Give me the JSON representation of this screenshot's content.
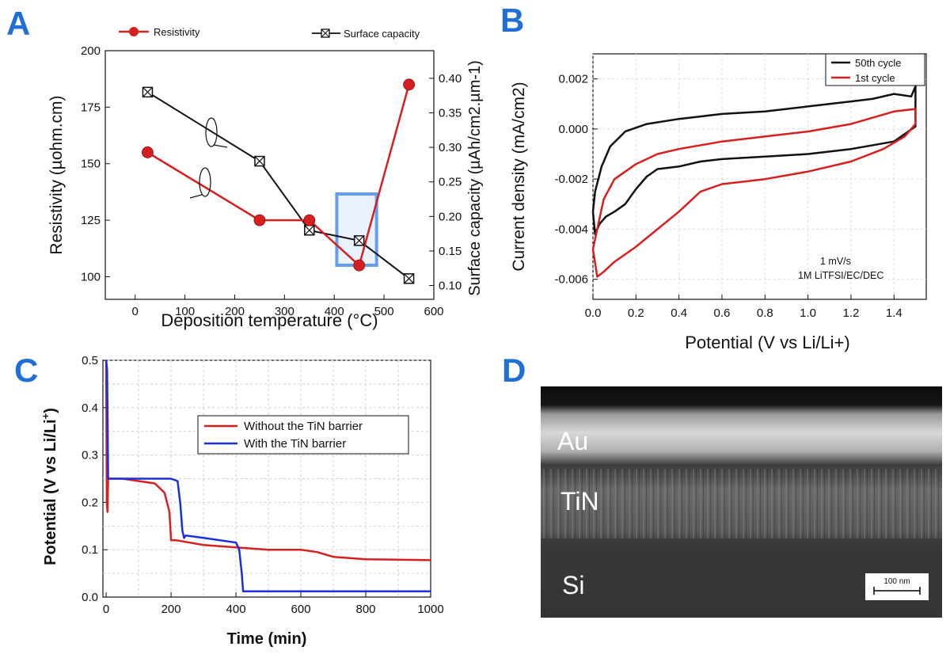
{
  "colors": {
    "red": "#d62020",
    "black": "#111111",
    "blue": "#1a2fe0",
    "letter": "#1f6fd6",
    "highlight": "#4a8ef0"
  },
  "panels": {
    "A": {
      "letter": "A"
    },
    "B": {
      "letter": "B"
    },
    "C": {
      "letter": "C"
    },
    "D": {
      "letter": "D"
    }
  },
  "chart_data": [
    {
      "type": "line",
      "panel": "A",
      "xlabel": "Deposition temperature (°C)",
      "ylabel": "Resistivity (µohm.cm)",
      "ylabel_right": "Surface capacity (µAh/cm2.µm-1)",
      "xlim": [
        -60,
        600
      ],
      "ylim": [
        90,
        200
      ],
      "ylim_right": [
        0.08,
        0.44
      ],
      "x_ticks": [
        0,
        100,
        200,
        300,
        400,
        500,
        600
      ],
      "y_ticks": [
        100,
        125,
        150,
        175,
        200
      ],
      "y_ticks_right": [
        0.1,
        0.15,
        0.2,
        0.25,
        0.3,
        0.35,
        0.4
      ],
      "y_tick_labels_right": [
        "0.10",
        "0.15",
        "0.20",
        "0.25",
        "0.30",
        "0.35",
        "0.40"
      ],
      "legend": [
        "Resistivity",
        "Surface capacity"
      ],
      "legend_position": "top",
      "series": [
        {
          "name": "Resistivity",
          "axis": "left",
          "marker": "sphere",
          "color": "#d62020",
          "x": [
            25,
            250,
            350,
            450,
            550
          ],
          "y": [
            155,
            125,
            125,
            105,
            185
          ]
        },
        {
          "name": "Surface capacity",
          "axis": "right",
          "marker": "boxed-x",
          "color": "#111111",
          "x": [
            25,
            250,
            350,
            450,
            550
          ],
          "y": [
            0.38,
            0.28,
            0.18,
            0.165,
            0.11
          ]
        }
      ],
      "highlight_x_range": [
        405,
        485
      ]
    },
    {
      "type": "line",
      "panel": "B",
      "xlabel": "Potential (V vs Li/Li+)",
      "ylabel": "Current density (mA/cm2)",
      "xlim": [
        0,
        1.55
      ],
      "ylim": [
        -0.0068,
        0.003
      ],
      "x_ticks": [
        0.0,
        0.2,
        0.4,
        0.6,
        0.8,
        1.0,
        1.2,
        1.4
      ],
      "x_tick_labels": [
        "0.0",
        "0.2",
        "0.4",
        "0.6",
        "0.8",
        "1.0",
        "1.2",
        "1.4"
      ],
      "y_ticks": [
        0.002,
        0.0,
        -0.002,
        -0.004,
        -0.006
      ],
      "y_tick_labels": [
        "0.002",
        "0.000",
        "-0.002",
        "-0.004",
        "-0.006"
      ],
      "legend": [
        "50th cycle",
        "1st cycle"
      ],
      "legend_position": "top-right",
      "annotation": [
        "1 mV/s",
        "1M LiTFSI/EC/DEC"
      ],
      "series": [
        {
          "name": "50th cycle",
          "color": "#111111",
          "x": [
            1.5,
            1.48,
            1.4,
            1.3,
            1.2,
            1.1,
            1.0,
            0.8,
            0.6,
            0.4,
            0.25,
            0.15,
            0.08,
            0.04,
            0.01,
            0.0,
            0.01,
            0.03,
            0.06,
            0.1,
            0.15,
            0.2,
            0.25,
            0.3,
            0.4,
            0.5,
            0.6,
            0.8,
            1.0,
            1.2,
            1.4,
            1.5
          ],
          "y": [
            0.0017,
            0.0013,
            0.0014,
            0.0012,
            0.0011,
            0.001,
            0.0009,
            0.0007,
            0.0006,
            0.0004,
            0.0002,
            -0.0001,
            -0.0007,
            -0.0015,
            -0.0025,
            -0.0033,
            -0.0042,
            -0.0038,
            -0.0035,
            -0.0033,
            -0.003,
            -0.0024,
            -0.0019,
            -0.0016,
            -0.0015,
            -0.0013,
            -0.0012,
            -0.0011,
            -0.001,
            -0.0008,
            -0.0005,
            0.0001
          ]
        },
        {
          "name": "1st cycle",
          "color": "#d62020",
          "x": [
            1.5,
            1.4,
            1.2,
            1.0,
            0.8,
            0.6,
            0.4,
            0.3,
            0.2,
            0.1,
            0.05,
            0.02,
            0.0,
            0.02,
            0.05,
            0.1,
            0.2,
            0.3,
            0.4,
            0.5,
            0.6,
            0.8,
            1.0,
            1.2,
            1.35,
            1.45,
            1.5
          ],
          "y": [
            0.0008,
            0.0007,
            0.0002,
            -0.0001,
            -0.0003,
            -0.0005,
            -0.0008,
            -0.001,
            -0.0014,
            -0.002,
            -0.0028,
            -0.004,
            -0.0048,
            -0.0059,
            -0.0057,
            -0.0053,
            -0.0047,
            -0.004,
            -0.0033,
            -0.0025,
            -0.0022,
            -0.002,
            -0.0017,
            -0.0013,
            -0.0008,
            -0.0003,
            0.0002
          ]
        }
      ]
    },
    {
      "type": "line",
      "panel": "C",
      "xlabel": "Time (min)",
      "ylabel": "Potential (V vs Li/Li",
      "ylabel_sup": "+",
      "ylabel_end": ")",
      "xlim": [
        -10,
        1000
      ],
      "ylim": [
        0,
        0.5
      ],
      "x_ticks": [
        0,
        200,
        400,
        600,
        800,
        1000
      ],
      "y_ticks": [
        0.0,
        0.1,
        0.2,
        0.3,
        0.4,
        0.5
      ],
      "y_tick_labels": [
        "0.0",
        "0.1",
        "0.2",
        "0.3",
        "0.4",
        "0.5"
      ],
      "grid": true,
      "legend": [
        "Without the TiN barrier",
        "With the TiN barrier"
      ],
      "legend_position": "center-right",
      "series": [
        {
          "name": "Without the TiN barrier",
          "color": "#d62020",
          "x": [
            0,
            2,
            4,
            6,
            10,
            50,
            100,
            150,
            180,
            195,
            200,
            215,
            300,
            400,
            500,
            600,
            650,
            700,
            800,
            1000
          ],
          "y": [
            0.5,
            0.2,
            0.18,
            0.25,
            0.25,
            0.25,
            0.245,
            0.24,
            0.22,
            0.18,
            0.12,
            0.12,
            0.11,
            0.105,
            0.1,
            0.1,
            0.095,
            0.085,
            0.08,
            0.078
          ]
        },
        {
          "name": "With the TiN barrier",
          "color": "#1a2fe0",
          "x": [
            0,
            3,
            6,
            10,
            100,
            200,
            220,
            228,
            235,
            240,
            245,
            300,
            400,
            410,
            418,
            422,
            430,
            600,
            800,
            1000
          ],
          "y": [
            0.5,
            0.48,
            0.25,
            0.25,
            0.25,
            0.25,
            0.245,
            0.2,
            0.14,
            0.125,
            0.13,
            0.125,
            0.115,
            0.1,
            0.05,
            0.012,
            0.012,
            0.012,
            0.012,
            0.012
          ]
        }
      ]
    }
  ],
  "sem": {
    "layers": [
      "Au",
      "TiN",
      "Si"
    ],
    "scale_bar": "100 nm"
  }
}
